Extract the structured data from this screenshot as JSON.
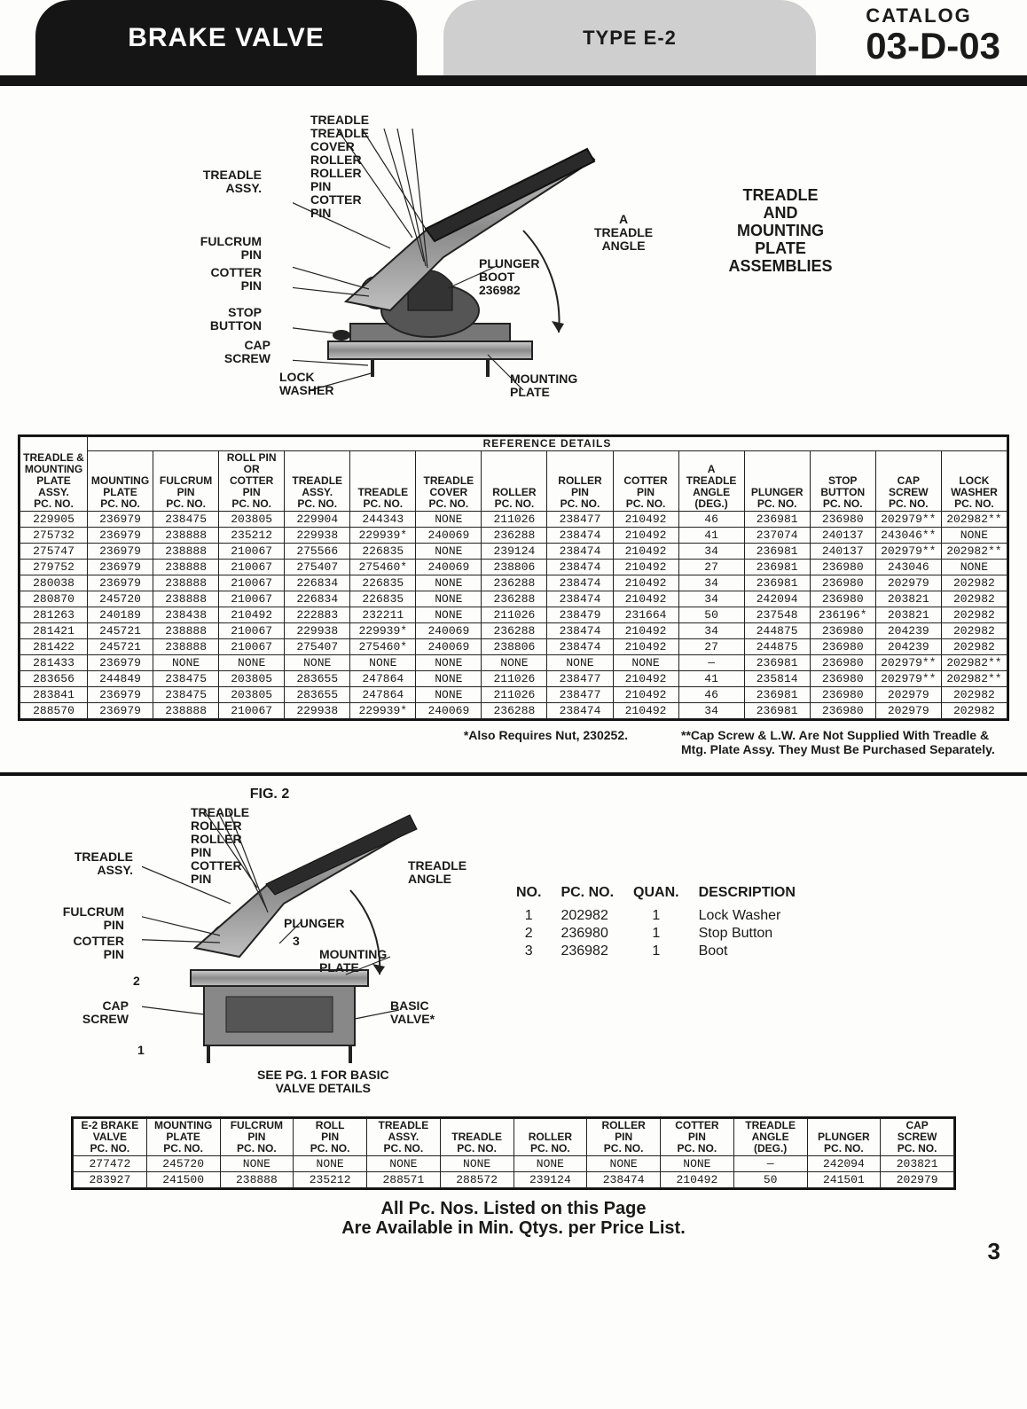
{
  "header": {
    "title_black": "BRAKE VALVE",
    "title_grey": "TYPE E-2",
    "catalog_label": "CATALOG",
    "catalog_code": "03-D-03"
  },
  "diagram1": {
    "big_title": "TREADLE\nAND\nMOUNTING\nPLATE\nASSEMBLIES",
    "callouts": {
      "treadle_assy": "TREADLE\nASSY.",
      "fulcrum_pin": "FULCRUM\nPIN",
      "cotter_pin_l": "COTTER\nPIN",
      "stop_button": "STOP\nBUTTON",
      "cap_screw": "CAP\nSCREW",
      "lock_washer": "LOCK\nWASHER",
      "treadle_stack": "TREADLE\nTREADLE\nCOVER\nROLLER\nROLLER\nPIN\nCOTTER\nPIN",
      "plunger_boot": "PLUNGER\nBOOT\n236982",
      "treadle_angle": "A\nTREADLE\nANGLE",
      "mounting_plate": "MOUNTING\nPLATE"
    }
  },
  "table1": {
    "ref_header": "REFERENCE DETAILS",
    "columns": [
      "TREADLE &\nMOUNTING\nPLATE\nASSY.\nPC. NO.",
      "MOUNTING\nPLATE\nPC. NO.",
      "FULCRUM\nPIN\nPC. NO.",
      "ROLL PIN\nOR COTTER\nPIN\nPC. NO.",
      "TREADLE\nASSY.\nPC. NO.",
      "TREADLE\nPC. NO.",
      "TREADLE\nCOVER\nPC. NO.",
      "ROLLER\nPC. NO.",
      "ROLLER\nPIN\nPC. NO.",
      "COTTER\nPIN\nPC. NO.",
      "A\nTREADLE\nANGLE\n(DEG.)",
      "PLUNGER\nPC. NO.",
      "STOP\nBUTTON\nPC. NO.",
      "CAP\nSCREW\nPC. NO.",
      "LOCK\nWASHER\nPC. NO."
    ],
    "rows": [
      [
        "229905",
        "236979",
        "238475",
        "203805",
        "229904",
        "244343",
        "NONE",
        "211026",
        "238477",
        "210492",
        "46",
        "236981",
        "236980",
        "202979**",
        "202982**"
      ],
      [
        "275732",
        "236979",
        "238888",
        "235212",
        "229938",
        "229939*",
        "240069",
        "236288",
        "238474",
        "210492",
        "41",
        "237074",
        "240137",
        "243046**",
        "NONE"
      ],
      [
        "275747",
        "236979",
        "238888",
        "210067",
        "275566",
        "226835",
        "NONE",
        "239124",
        "238474",
        "210492",
        "34",
        "236981",
        "240137",
        "202979**",
        "202982**"
      ],
      [
        "279752",
        "236979",
        "238888",
        "210067",
        "275407",
        "275460*",
        "240069",
        "238806",
        "238474",
        "210492",
        "27",
        "236981",
        "236980",
        "243046",
        "NONE"
      ],
      [
        "280038",
        "236979",
        "238888",
        "210067",
        "226834",
        "226835",
        "NONE",
        "236288",
        "238474",
        "210492",
        "34",
        "236981",
        "236980",
        "202979",
        "202982"
      ],
      [
        "280870",
        "245720",
        "238888",
        "210067",
        "226834",
        "226835",
        "NONE",
        "236288",
        "238474",
        "210492",
        "34",
        "242094",
        "236980",
        "203821",
        "202982"
      ],
      [
        "281263",
        "240189",
        "238438",
        "210492",
        "222883",
        "232211",
        "NONE",
        "211026",
        "238479",
        "231664",
        "50",
        "237548",
        "236196*",
        "203821",
        "202982"
      ],
      [
        "281421",
        "245721",
        "238888",
        "210067",
        "229938",
        "229939*",
        "240069",
        "236288",
        "238474",
        "210492",
        "34",
        "244875",
        "236980",
        "204239",
        "202982"
      ],
      [
        "281422",
        "245721",
        "238888",
        "210067",
        "275407",
        "275460*",
        "240069",
        "238806",
        "238474",
        "210492",
        "27",
        "244875",
        "236980",
        "204239",
        "202982"
      ],
      [
        "281433",
        "236979",
        "NONE",
        "NONE",
        "NONE",
        "NONE",
        "NONE",
        "NONE",
        "NONE",
        "NONE",
        "—",
        "236981",
        "236980",
        "202979**",
        "202982**"
      ],
      [
        "283656",
        "244849",
        "238475",
        "203805",
        "283655",
        "247864",
        "NONE",
        "211026",
        "238477",
        "210492",
        "41",
        "235814",
        "236980",
        "202979**",
        "202982**"
      ],
      [
        "283841",
        "236979",
        "238475",
        "203805",
        "283655",
        "247864",
        "NONE",
        "211026",
        "238477",
        "210492",
        "46",
        "236981",
        "236980",
        "202979",
        "202982"
      ],
      [
        "288570",
        "236979",
        "238888",
        "210067",
        "229938",
        "229939*",
        "240069",
        "236288",
        "238474",
        "210492",
        "34",
        "236981",
        "236980",
        "202979",
        "202982"
      ]
    ],
    "footnote_star": "*Also Requires Nut, 230252.",
    "footnote_dstar": "**Cap Screw & L.W. Are Not Supplied With Treadle & Mtg. Plate Assy. They Must Be Purchased Separately."
  },
  "diagram2": {
    "fig_label": "FIG. 2",
    "callouts": {
      "treadle_assy": "TREADLE\nASSY.",
      "fulcrum_pin": "FULCRUM\nPIN",
      "cotter_pin": "COTTER\nPIN",
      "cap_screw": "CAP\nSCREW",
      "treadle_stack": "TREADLE\nROLLER\nROLLER\nPIN\nCOTTER\nPIN",
      "plunger": "PLUNGER",
      "three": "3",
      "mounting_plate": "MOUNTING\nPLATE",
      "treadle_angle": "TREADLE\nANGLE",
      "basic_valve": "BASIC\nVALVE*",
      "two": "2",
      "one": "1"
    },
    "note": "SEE PG. 1 FOR BASIC\nVALVE DETAILS",
    "parts_table": {
      "headers": [
        "NO.",
        "PC. NO.",
        "QUAN.",
        "DESCRIPTION"
      ],
      "rows": [
        [
          "1",
          "202982",
          "1",
          "Lock Washer"
        ],
        [
          "2",
          "236980",
          "1",
          "Stop Button"
        ],
        [
          "3",
          "236982",
          "1",
          "Boot"
        ]
      ]
    }
  },
  "table2": {
    "columns": [
      "E-2 BRAKE\nVALVE\nPC. NO.",
      "MOUNTING\nPLATE\nPC. NO.",
      "FULCRUM\nPIN\nPC. NO.",
      "ROLL\nPIN\nPC. NO.",
      "TREADLE\nASSY.\nPC. NO.",
      "TREADLE\nPC. NO.",
      "ROLLER\nPC. NO.",
      "ROLLER\nPIN\nPC. NO.",
      "COTTER\nPIN\nPC. NO.",
      "TREADLE\nANGLE\n(DEG.)",
      "PLUNGER\nPC. NO.",
      "CAP\nSCREW\nPC. NO."
    ],
    "rows": [
      [
        "277472",
        "245720",
        "NONE",
        "NONE",
        "NONE",
        "NONE",
        "NONE",
        "NONE",
        "NONE",
        "—",
        "242094",
        "203821"
      ],
      [
        "283927",
        "241500",
        "238888",
        "235212",
        "288571",
        "288572",
        "239124",
        "238474",
        "210492",
        "50",
        "241501",
        "202979"
      ]
    ]
  },
  "bottom_note": "All Pc. Nos. Listed on this Page\nAre Available in Min. Qtys. per Price List.",
  "page_number": "3"
}
